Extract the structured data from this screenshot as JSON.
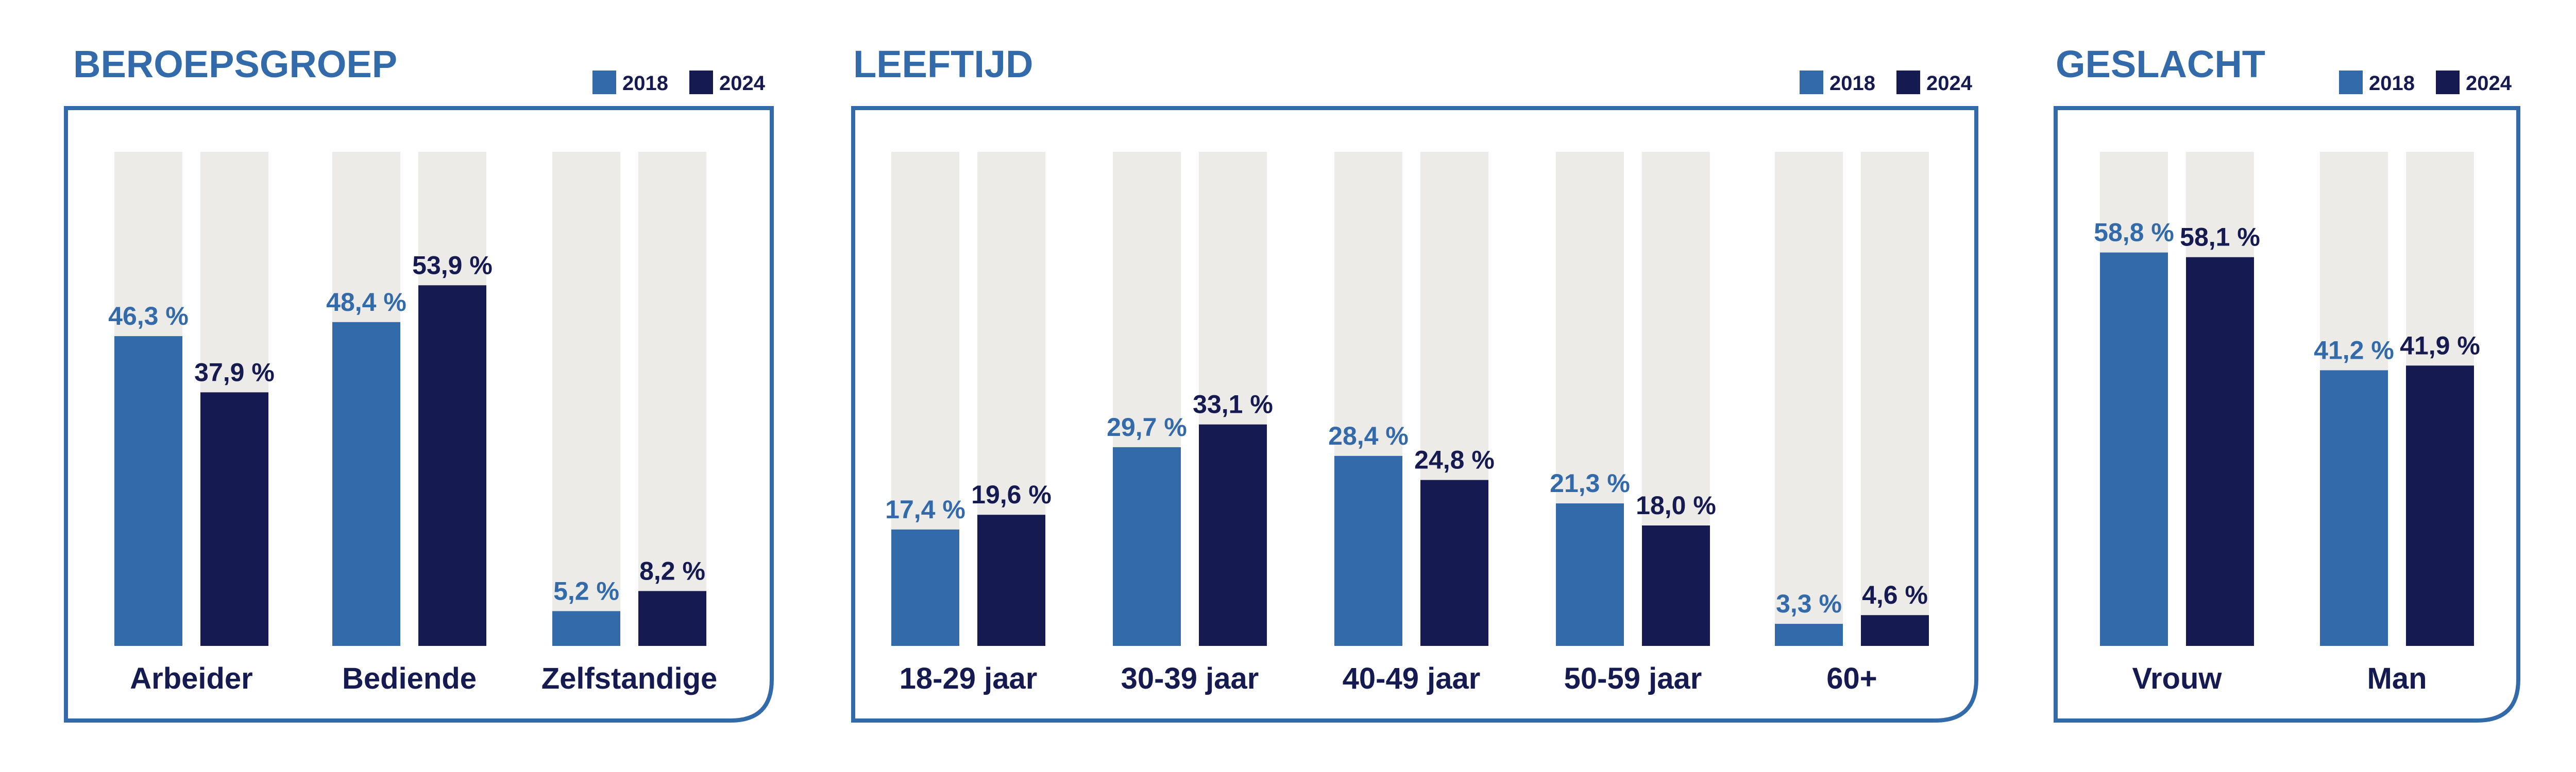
{
  "colors": {
    "series_2018": "#336aa9",
    "series_2024": "#151b50",
    "track": "#ecebe7",
    "frame": "#336aa9",
    "title": "#336aa9",
    "label_2018": "#336aa9",
    "label_2024": "#151b50",
    "category_text": "#151b50"
  },
  "chart_data": [
    {
      "type": "bar",
      "title": "BEROEPSGROEP",
      "categories": [
        "Arbeider",
        "Bediende",
        "Zelfstandige"
      ],
      "series": [
        {
          "name": "2018",
          "values": [
            46.3,
            48.4,
            5.2
          ],
          "labels": [
            "46,3 %",
            "48,4 %",
            "5,2 %"
          ]
        },
        {
          "name": "2024",
          "values": [
            37.9,
            53.9,
            8.2
          ],
          "labels": [
            "37,9 %",
            "53,9 %",
            "8,2 %"
          ]
        }
      ],
      "ylim": [
        0,
        100
      ],
      "legend": "top-right",
      "grid": false
    },
    {
      "type": "bar",
      "title": "LEEFTIJD",
      "categories": [
        "18-29 jaar",
        "30-39 jaar",
        "40-49 jaar",
        "50-59 jaar",
        "60+"
      ],
      "series": [
        {
          "name": "2018",
          "values": [
            17.4,
            29.7,
            28.4,
            21.3,
            3.3
          ],
          "labels": [
            "17,4 %",
            "29,7 %",
            "28,4 %",
            "21,3 %",
            "3,3 %"
          ]
        },
        {
          "name": "2024",
          "values": [
            19.6,
            33.1,
            24.8,
            18.0,
            4.6
          ],
          "labels": [
            "19,6 %",
            "33,1 %",
            "24,8 %",
            "18,0 %",
            "4,6 %"
          ]
        }
      ],
      "ylim": [
        0,
        100
      ],
      "legend": "top-right",
      "grid": false
    },
    {
      "type": "bar",
      "title": "GESLACHT",
      "categories": [
        "Vrouw",
        "Man"
      ],
      "series": [
        {
          "name": "2018",
          "values": [
            58.8,
            41.2
          ],
          "labels": [
            "58,8 %",
            "41,2 %"
          ]
        },
        {
          "name": "2024",
          "values": [
            58.1,
            41.9
          ],
          "labels": [
            "58,1 %",
            "41,9 %"
          ]
        }
      ],
      "ylim": [
        0,
        100
      ],
      "legend": "top-right",
      "grid": false
    }
  ]
}
